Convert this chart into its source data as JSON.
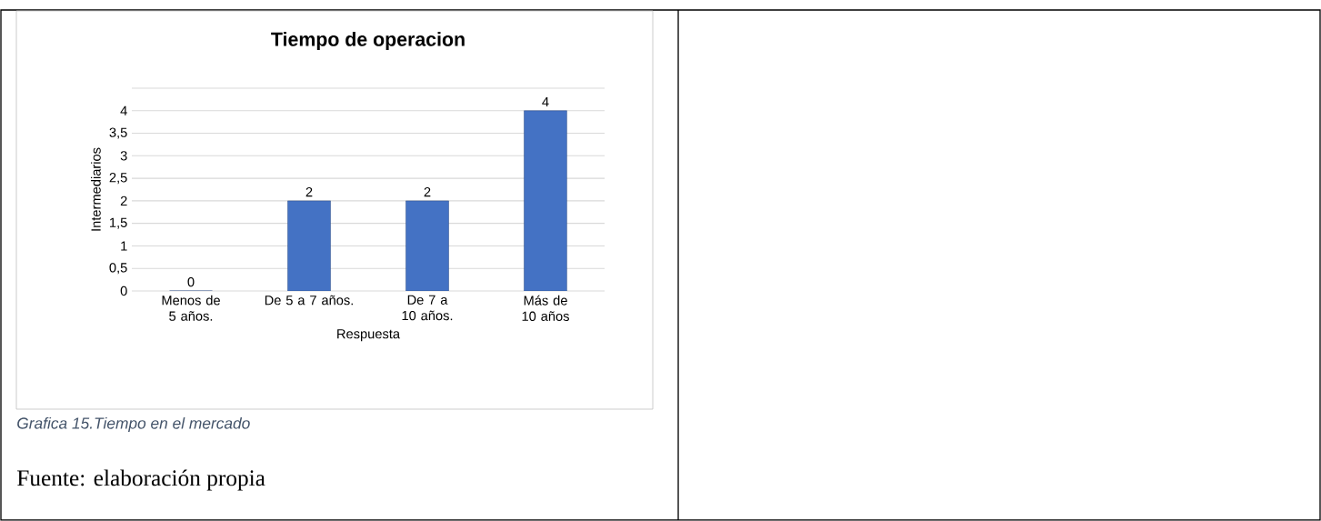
{
  "chart_data": {
    "type": "bar",
    "title": "Tiempo de operacion",
    "xlabel": "Respuesta",
    "ylabel": "Intermediarios",
    "categories": [
      "Menos de 5 años.",
      "De 5 a 7 años.",
      "De 7 a 10 años.",
      "Más de 10 años"
    ],
    "values": [
      0,
      2,
      2,
      4
    ],
    "color": "#4472c4",
    "data_labels": true,
    "ylim": [
      0,
      4.5
    ],
    "yticks": [
      0,
      {
        "value": 0.5,
        "label": "0,5"
      },
      1,
      {
        "value": 1.5,
        "label": "1,5"
      },
      2,
      {
        "value": 2.5,
        "label": "2,5"
      },
      3,
      {
        "value": 3.5,
        "label": "3,5"
      },
      4,
      {
        "value": 4.5,
        "label": null
      }
    ],
    "grid": "y",
    "annotations": [
      "Grafica 15.Tiempo en el mercado",
      "Fuente: elaboración propia"
    ]
  }
}
